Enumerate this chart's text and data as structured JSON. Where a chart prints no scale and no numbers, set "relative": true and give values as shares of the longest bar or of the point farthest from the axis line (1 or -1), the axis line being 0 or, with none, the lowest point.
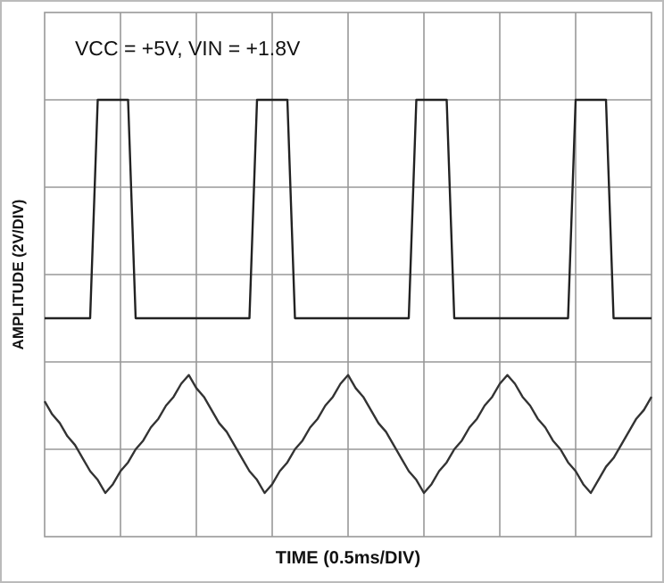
{
  "chart_data": {
    "type": "line",
    "relative": true,
    "grid": true,
    "xlabel": "TIME (0.5ms/DIV)",
    "ylabel": "AMPLITUDE  (2V/DIV)",
    "annotations": [
      "VCC = +5V, VIN = +1.8V"
    ],
    "categories": [
      null,
      null,
      null,
      null,
      null,
      null,
      null,
      null,
      null,
      null,
      null,
      null,
      null,
      null,
      null,
      null,
      null,
      null,
      null,
      null,
      null,
      null,
      null,
      null,
      null,
      null,
      null,
      null,
      null,
      null,
      null,
      null,
      null,
      null,
      null,
      null,
      null,
      null,
      null,
      null,
      null,
      null,
      null,
      null,
      null,
      null,
      null,
      null,
      null,
      null,
      null,
      null,
      null,
      null,
      null,
      null,
      null,
      null,
      null,
      null,
      null,
      null,
      null,
      null,
      null,
      null,
      null,
      null,
      null,
      null,
      null,
      null,
      null,
      null,
      null,
      null,
      null,
      null,
      null,
      null,
      null
    ],
    "series": [
      {
        "color": "#222222",
        "values": [
          0.5,
          0.5,
          0.5,
          0.5,
          0.5,
          0.5,
          0.5,
          1,
          1,
          1,
          1,
          1,
          0.5,
          0.5,
          0.5,
          0.5,
          0.5,
          0.5,
          0.5,
          0.5,
          0.5,
          0.5,
          0.5,
          0.5,
          0.5,
          0.5,
          0.5,
          0.5,
          1,
          1,
          1,
          1,
          1,
          0.5,
          0.5,
          0.5,
          0.5,
          0.5,
          0.5,
          0.5,
          0.5,
          0.5,
          0.5,
          0.5,
          0.5,
          0.5,
          0.5,
          0.5,
          0.5,
          1,
          1,
          1,
          1,
          1,
          0.5,
          0.5,
          0.5,
          0.5,
          0.5,
          0.5,
          0.5,
          0.5,
          0.5,
          0.5,
          0.5,
          0.5,
          0.5,
          0.5,
          0.5,
          0.5,
          1,
          1,
          1,
          1,
          1,
          0.5,
          0.5,
          0.5,
          0.5,
          0.5,
          0.5
        ]
      },
      {
        "color": "#333333",
        "values": [
          0.31,
          0.28,
          0.26,
          0.23,
          0.21,
          0.18,
          0.15,
          0.13,
          0.1,
          0.12,
          0.15,
          0.17,
          0.2,
          0.22,
          0.25,
          0.27,
          0.3,
          0.32,
          0.35,
          0.37,
          0.34,
          0.32,
          0.29,
          0.26,
          0.24,
          0.21,
          0.18,
          0.15,
          0.13,
          0.1,
          0.12,
          0.15,
          0.17,
          0.2,
          0.22,
          0.25,
          0.27,
          0.3,
          0.32,
          0.35,
          0.37,
          0.34,
          0.32,
          0.29,
          0.26,
          0.24,
          0.21,
          0.18,
          0.15,
          0.13,
          0.1,
          0.12,
          0.15,
          0.17,
          0.2,
          0.22,
          0.25,
          0.27,
          0.3,
          0.32,
          0.35,
          0.37,
          0.35,
          0.32,
          0.3,
          0.27,
          0.25,
          0.22,
          0.2,
          0.17,
          0.15,
          0.12,
          0.1,
          0.13,
          0.16,
          0.18,
          0.21,
          0.24,
          0.27,
          0.29,
          0.32
        ]
      }
    ]
  }
}
